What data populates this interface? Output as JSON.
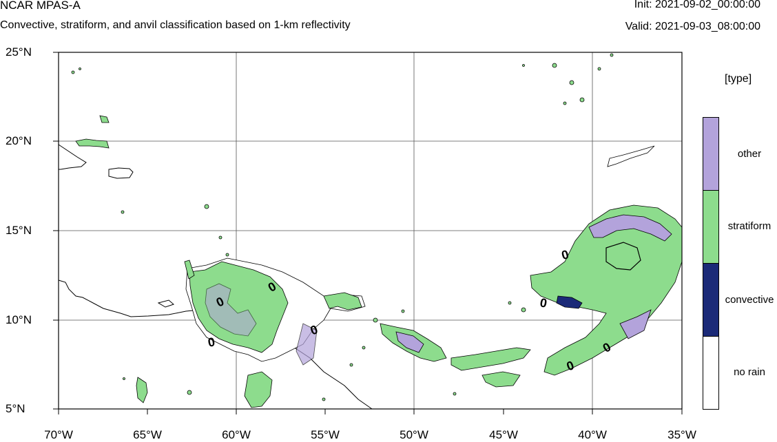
{
  "header": {
    "model": "NCAR MPAS-A",
    "subtitle": "Convective, stratiform, and anvil classification based on 1-km reflectivity",
    "init": "Init: 2021-09-02_00:00:00",
    "valid": "Valid: 2021-09-03_08:00:00"
  },
  "axes": {
    "y_ticks": [
      "25°N",
      "20°N",
      "15°N",
      "10°N",
      "5°N"
    ],
    "x_ticks": [
      "70°W",
      "65°W",
      "60°W",
      "55°W",
      "50°W",
      "45°W",
      "40°W",
      "35°W"
    ],
    "lat_range": [
      5,
      25
    ],
    "lon_range": [
      -70,
      -35
    ],
    "grid": true
  },
  "contour_labels": [
    "0",
    "0",
    "0",
    "0",
    "0",
    "0",
    "0",
    "0"
  ],
  "colorbar": {
    "title": "[type]",
    "categories": [
      {
        "label": "other",
        "color": "#b3a3db"
      },
      {
        "label": "stratiform",
        "color": "#8ddc8d"
      },
      {
        "label": "convective",
        "color": "#1b2a78"
      },
      {
        "label": "no rain",
        "color": "#ffffff"
      }
    ]
  }
}
